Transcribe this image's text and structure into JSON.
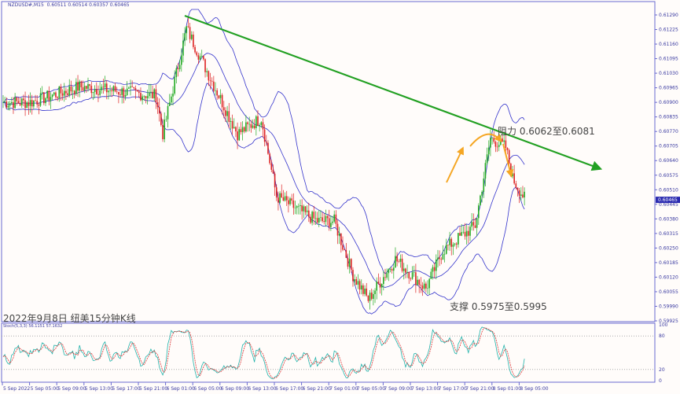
{
  "header": {
    "symbol": "NZDUSD#,M15",
    "ohlc": "0.60511 0.60514 0.60357 0.60465"
  },
  "caption": "2022年9月8日 纽美15分钟K线",
  "annotations": {
    "resistance": "阻力 0.6062至0.6081",
    "support": "支撑 0.5975至0.5995"
  },
  "colors": {
    "up": "#22aa22",
    "down": "#dd2222",
    "bands": "#3333cc",
    "trend": "#22a022",
    "arrows": "#f5a623",
    "stoch_main": "#20b2aa",
    "stoch_signal": "#dd3333"
  },
  "chart_data": [
    {
      "type": "candlestick",
      "title": "NZDUSD#,M15",
      "y_ticks": [
        "0.61290",
        "0.61225",
        "0.61160",
        "0.61095",
        "0.61030",
        "0.60965",
        "0.60900",
        "0.60835",
        "0.60770",
        "0.60705",
        "0.60640",
        "0.60575",
        "0.60510",
        "0.60445",
        "0.60380",
        "0.60315",
        "0.60250",
        "0.60185",
        "0.60120",
        "0.60055",
        "0.59990",
        "0.59925"
      ],
      "ylim": [
        0.59925,
        0.6129
      ],
      "current_price": "0.60465",
      "x_ticks": [
        "5 Sep 2022",
        "5 Sep 05:00",
        "5 Sep 09:00",
        "5 Sep 13:00",
        "5 Sep 17:00",
        "5 Sep 21:00",
        "6 Sep 01:00",
        "6 Sep 05:00",
        "6 Sep 09:00",
        "6 Sep 13:00",
        "6 Sep 17:00",
        "6 Sep 21:00",
        "7 Sep 01:00",
        "7 Sep 05:00",
        "7 Sep 09:00",
        "7 Sep 13:00",
        "7 Sep 17:00",
        "7 Sep 21:00",
        "8 Sep 01:00",
        "8 Sep 05:00"
      ],
      "approx_close_path": [
        [
          0,
          0.609
        ],
        [
          16,
          0.609
        ],
        [
          45,
          0.6097
        ],
        [
          90,
          0.6093
        ],
        [
          94,
          0.6076
        ],
        [
          108,
          0.6123
        ],
        [
          120,
          0.6104
        ],
        [
          138,
          0.6076
        ],
        [
          152,
          0.6083
        ],
        [
          161,
          0.6048
        ],
        [
          185,
          0.6037
        ],
        [
          195,
          0.6037
        ],
        [
          206,
          0.6013
        ],
        [
          215,
          0.6002
        ],
        [
          231,
          0.602
        ],
        [
          249,
          0.6007
        ],
        [
          259,
          0.6024
        ],
        [
          278,
          0.6035
        ],
        [
          287,
          0.6074
        ],
        [
          296,
          0.607
        ],
        [
          300,
          0.6056
        ],
        [
          308,
          0.6046
        ]
      ],
      "indicators": [
        "Bollinger Bands",
        "Trend line"
      ]
    },
    {
      "type": "line",
      "title": "Stoch(5,3,3) 56.1151 57.1632",
      "y_ticks": [
        "100",
        "80",
        "20",
        "0"
      ],
      "ylim": [
        0,
        100
      ]
    }
  ]
}
